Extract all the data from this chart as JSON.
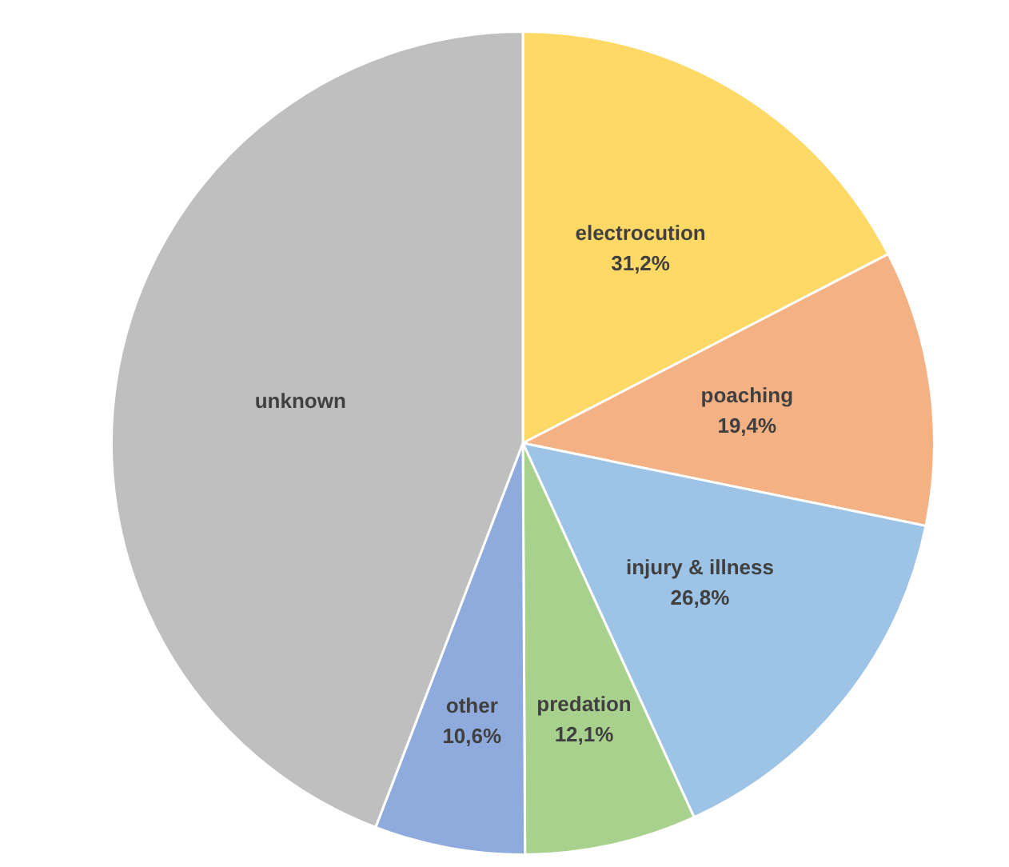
{
  "chart_data": {
    "type": "pie",
    "categories": [
      "electrocution",
      "poaching",
      "injury & illness",
      "predation",
      "other",
      "unknown"
    ],
    "values": [
      31.2,
      19.4,
      26.8,
      12.1,
      10.6,
      79.2
    ],
    "value_labels": [
      "31,2%",
      "19,4%",
      "26,8%",
      "12,1%",
      "10,6%",
      null
    ],
    "colors": [
      "#ffd966",
      "#f4b183",
      "#9dc3e6",
      "#a9d18e",
      "#8faadc",
      "#bfbfbf"
    ],
    "legend": false
  }
}
